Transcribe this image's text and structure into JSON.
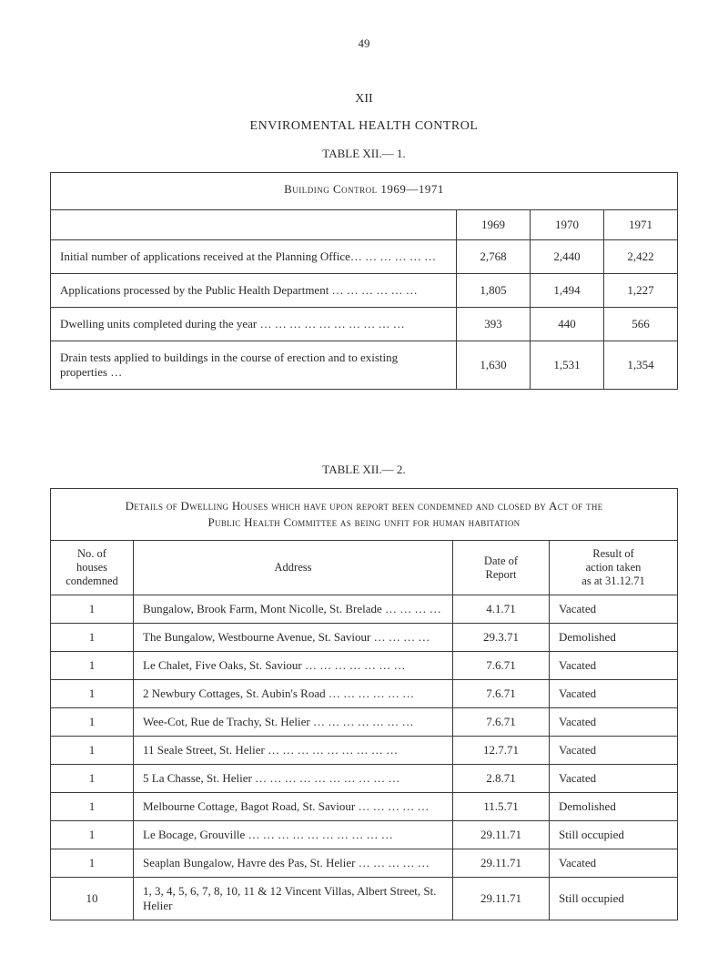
{
  "page_number": "49",
  "roman_numeral": "XII",
  "section_title": "ENVIROMENTAL HEALTH CONTROL",
  "table1": {
    "label": "TABLE XII.— 1.",
    "title": "Building Control 1969—1971",
    "years": [
      "1969",
      "1970",
      "1971"
    ],
    "rows": [
      {
        "label": "Initial number of applications received at the Planning Office… … … … … …",
        "vals": [
          "2,768",
          "2,440",
          "2,422"
        ]
      },
      {
        "label": "Applications processed by the Public Health Department … … … … … …",
        "vals": [
          "1,805",
          "1,494",
          "1,227"
        ]
      },
      {
        "label": "Dwelling units completed during the year … … … … … … … … … …",
        "vals": [
          "393",
          "440",
          "566"
        ]
      },
      {
        "label": "Drain tests applied to buildings in the course of erection and to existing properties …",
        "vals": [
          "1,630",
          "1,531",
          "1,354"
        ]
      }
    ]
  },
  "table2": {
    "label": "TABLE XII.— 2.",
    "title_line1": "Details of Dwelling Houses which have upon report been condemned and closed by Act of the",
    "title_line2": "Public Health Committee as being unfit for human habitation",
    "columns": {
      "no": "No. of\nhouses\ncondemned",
      "address": "Address",
      "date": "Date of\nReport",
      "result": "Result of\naction taken\nas at 31.12.71"
    },
    "rows": [
      {
        "no": "1",
        "addr": "Bungalow, Brook Farm, Mont Nicolle, St. Brelade … … … …",
        "date": "4.1.71",
        "result": "Vacated"
      },
      {
        "no": "1",
        "addr": "The Bungalow, Westbourne Avenue, St. Saviour … … … …",
        "date": "29.3.71",
        "result": "Demolished"
      },
      {
        "no": "1",
        "addr": "Le Chalet, Five Oaks, St. Saviour … … … … … … …",
        "date": "7.6.71",
        "result": "Vacated"
      },
      {
        "no": "1",
        "addr": "2 Newbury Cottages, St. Aubin's Road … … … … … …",
        "date": "7.6.71",
        "result": "Vacated"
      },
      {
        "no": "1",
        "addr": "Wee-Cot, Rue de Trachy, St. Helier … … … … … … …",
        "date": "7.6.71",
        "result": "Vacated"
      },
      {
        "no": "1",
        "addr": "11 Seale Street, St. Helier … … … … … … … … …",
        "date": "12.7.71",
        "result": "Vacated"
      },
      {
        "no": "1",
        "addr": "5 La Chasse, St. Helier … … … … … … … … … …",
        "date": "2.8.71",
        "result": "Vacated"
      },
      {
        "no": "1",
        "addr": "Melbourne Cottage, Bagot Road, St. Saviour … … … … …",
        "date": "11.5.71",
        "result": "Demolished"
      },
      {
        "no": "1",
        "addr": "Le Bocage, Grouville … … … … … … … … … …",
        "date": "29.11.71",
        "result": "Still occupied"
      },
      {
        "no": "1",
        "addr": "Seaplan Bungalow, Havre des Pas, St. Helier … … … … …",
        "date": "29.11.71",
        "result": "Vacated"
      },
      {
        "no": "10",
        "addr": "1, 3, 4, 5, 6, 7, 8, 10, 11 & 12 Vincent Villas, Albert Street, St. Helier",
        "date": "29.11.71",
        "result": "Still occupied"
      }
    ]
  }
}
